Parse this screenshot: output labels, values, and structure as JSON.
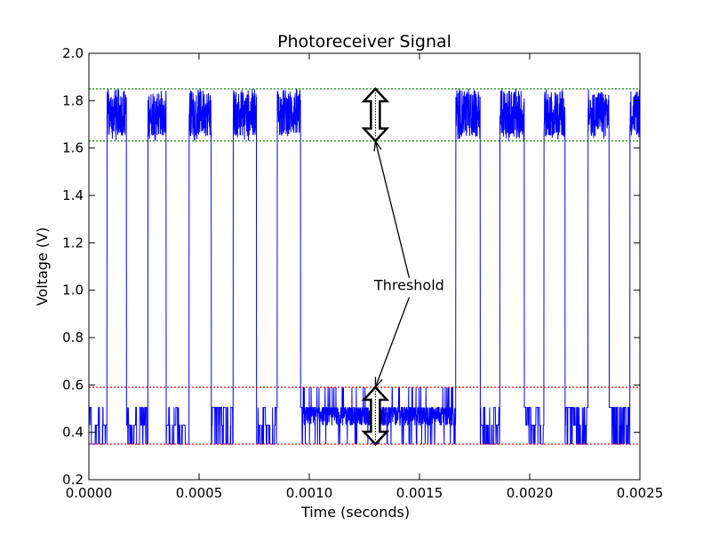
{
  "chart_data": {
    "type": "line",
    "title": "Photoreceiver Signal",
    "xlabel": "Time (seconds)",
    "ylabel": "Voltage (V)",
    "xlim": [
      0.0,
      0.0025
    ],
    "ylim": [
      0.2,
      2.0
    ],
    "xticks": [
      {
        "value": 0.0,
        "label": "0.0000"
      },
      {
        "value": 0.0005,
        "label": "0.0005"
      },
      {
        "value": 0.001,
        "label": "0.0010"
      },
      {
        "value": 0.0015,
        "label": "0.0015"
      },
      {
        "value": 0.002,
        "label": "0.0020"
      },
      {
        "value": 0.0025,
        "label": "0.0025"
      }
    ],
    "yticks": [
      {
        "value": 0.2,
        "label": "0.2"
      },
      {
        "value": 0.4,
        "label": "0.4"
      },
      {
        "value": 0.6,
        "label": "0.6"
      },
      {
        "value": 0.8,
        "label": "0.8"
      },
      {
        "value": 1.0,
        "label": "1.0"
      },
      {
        "value": 1.2,
        "label": "1.2"
      },
      {
        "value": 1.4,
        "label": "1.4"
      },
      {
        "value": 1.6,
        "label": "1.6"
      },
      {
        "value": 1.8,
        "label": "1.8"
      },
      {
        "value": 2.0,
        "label": "2.0"
      }
    ],
    "grid": false,
    "signal": {
      "color": "#0000ff",
      "high_band": [
        1.63,
        1.85
      ],
      "low_band": [
        0.35,
        0.59
      ],
      "high_pulses": [
        [
          8.2e-05,
          0.00017
        ],
        [
          0.000268,
          0.00035
        ],
        [
          0.000455,
          0.000555
        ],
        [
          0.000655,
          0.00076
        ],
        [
          0.000855,
          0.00096
        ],
        [
          0.001665,
          0.001775
        ],
        [
          0.001865,
          0.001975
        ],
        [
          0.002065,
          0.00216
        ],
        [
          0.002265,
          0.00236
        ],
        [
          0.002455,
          0.0025
        ]
      ],
      "dense_low_segment": [
        0.00097,
        0.001665
      ]
    },
    "threshold_lines": [
      {
        "y": 1.85,
        "color": "#008000",
        "style": "dotted"
      },
      {
        "y": 1.63,
        "color": "#008000",
        "style": "dotted"
      },
      {
        "y": 0.59,
        "color": "#ff0000",
        "style": "dotted"
      },
      {
        "y": 0.35,
        "color": "#ff0000",
        "style": "dotted"
      }
    ],
    "annotations": [
      {
        "text": "Threshold",
        "text_at": [
          0.0013,
          1.0
        ],
        "arrows_to": [
          [
            0.0013,
            1.63
          ],
          [
            0.0013,
            0.59
          ]
        ],
        "double_arrows": [
          {
            "x": 0.0013,
            "y": [
              1.63,
              1.85
            ]
          },
          {
            "x": 0.0013,
            "y": [
              0.35,
              0.59
            ]
          }
        ]
      }
    ]
  }
}
